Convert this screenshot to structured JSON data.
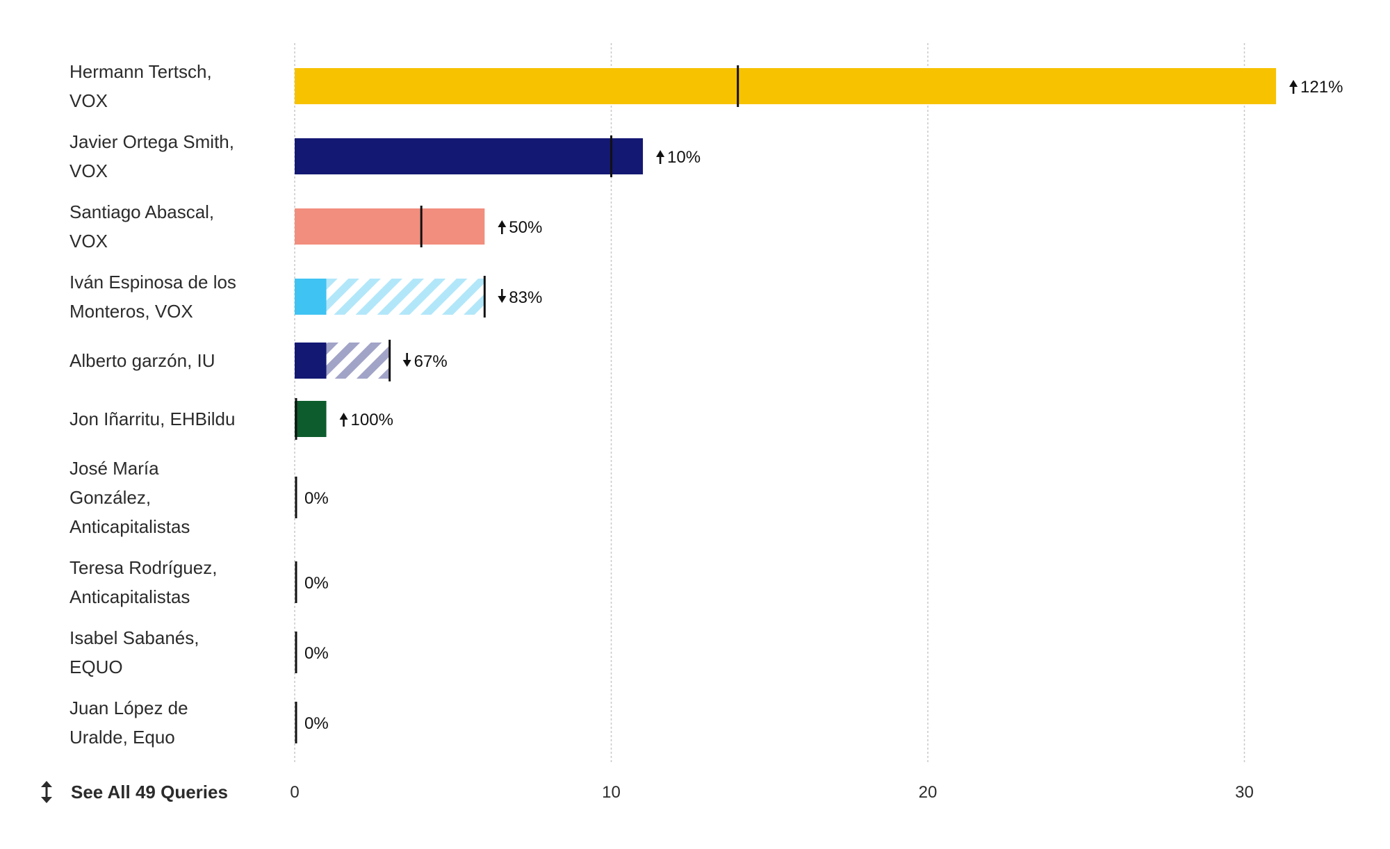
{
  "chart_data": {
    "type": "bar",
    "orientation": "horizontal",
    "categories": [
      [
        "Hermann Tertsch,",
        "VOX"
      ],
      [
        "Javier Ortega Smith,",
        "VOX"
      ],
      [
        "Santiago Abascal,",
        "VOX"
      ],
      [
        "Iván Espinosa de los",
        "Monteros, VOX"
      ],
      [
        "Alberto garzón, IU"
      ],
      [
        "Jon Iñarritu, EHBildu"
      ],
      [
        "José María",
        "González,",
        "Anticapitalistas"
      ],
      [
        "Teresa Rodríguez,",
        "Anticapitalistas"
      ],
      [
        "Isabel Sabanés,",
        "EQUO"
      ],
      [
        "Juan López de",
        "Uralde, Equo"
      ]
    ],
    "values": [
      31,
      11,
      6,
      1,
      1,
      1,
      0,
      0,
      0,
      0
    ],
    "previous_values": [
      14,
      10,
      4,
      6,
      3,
      0,
      0,
      0,
      0,
      0
    ],
    "change_labels": [
      "121%",
      "10%",
      "50%",
      "83%",
      "67%",
      "100%",
      "0%",
      "0%",
      "0%",
      "0%"
    ],
    "change_direction": [
      "up",
      "up",
      "up",
      "down",
      "down",
      "up",
      "none",
      "none",
      "none",
      "none"
    ],
    "colors": [
      "#f7c200",
      "#131873",
      "#f28e7d",
      "#3fc3f2",
      "#131873",
      "#0d5c2d",
      "#333333",
      "#333333",
      "#333333",
      "#333333"
    ],
    "xlim": [
      0,
      33
    ],
    "xticks": [
      0,
      10,
      20,
      30
    ],
    "grid": true,
    "title": "",
    "xlabel": "",
    "ylabel": ""
  },
  "footer": {
    "see_all_label": "See All 49 Queries",
    "see_all_icon": "up-down-arrow-icon"
  }
}
